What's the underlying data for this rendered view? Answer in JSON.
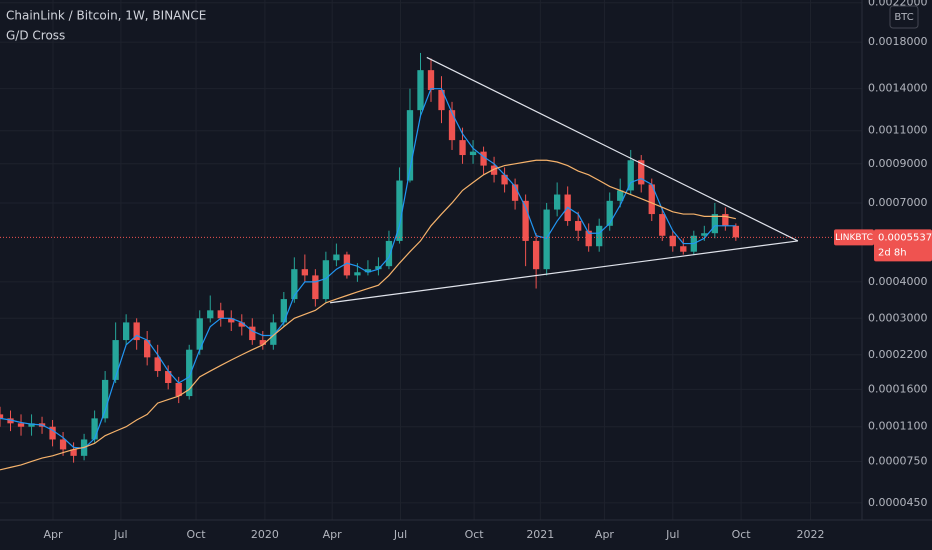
{
  "chart_data": {
    "type": "candlestick",
    "title": "ChainLink / Bitcoin, 1W, BINANCE",
    "indicator": "G/D Cross",
    "currency": "BTC",
    "symbol": "LINKBTC",
    "last_price": 0.0005537,
    "countdown": "2d 8h",
    "up_color": "#26a69a",
    "down_color": "#ef5350",
    "grid": true,
    "xlim": [
      0,
      82
    ],
    "ylim": [
      3.57e-05,
      0.00223
    ],
    "xticks": [
      {
        "value": 5.04,
        "label": "Apr"
      },
      {
        "value": 11.5,
        "label": "Jul"
      },
      {
        "value": 18.65,
        "label": "Oct"
      },
      {
        "value": 25.2,
        "label": "2020"
      },
      {
        "value": 31.6,
        "label": "Apr"
      },
      {
        "value": 38.1,
        "label": "Jul"
      },
      {
        "value": 45.1,
        "label": "Oct"
      },
      {
        "value": 51.4,
        "label": "2021"
      },
      {
        "value": 57.5,
        "label": "Apr"
      },
      {
        "value": 64.0,
        "label": "Jul"
      },
      {
        "value": 70.5,
        "label": "Oct"
      },
      {
        "value": 77.1,
        "label": "2022"
      }
    ],
    "yticks": [
      {
        "value": 4.5e-05,
        "label": "0.0000450"
      },
      {
        "value": 7.5e-05,
        "label": "0.0000750"
      },
      {
        "value": 0.00011,
        "label": "0.0001100"
      },
      {
        "value": 0.00016,
        "label": "0.0001600"
      },
      {
        "value": 0.00022,
        "label": "0.0002200"
      },
      {
        "value": 0.0003,
        "label": "0.0003000"
      },
      {
        "value": 0.0004,
        "label": "0.0004000"
      },
      {
        "value": 0.0007,
        "label": "0.0007000"
      },
      {
        "value": 0.0009,
        "label": "0.0009000"
      },
      {
        "value": 0.0011,
        "label": "0.0011000"
      },
      {
        "value": 0.0014,
        "label": "0.0014000"
      },
      {
        "value": 0.0018,
        "label": "0.0018000"
      },
      {
        "value": 0.0022,
        "label": "0.0022000"
      }
    ],
    "open": [
      0.000125,
      0.00012,
      0.000114,
      0.00011,
      0.000114,
      0.00011,
      9.6e-05,
      8.6e-05,
      8e-05,
      9.6e-05,
      0.00012,
      0.000175,
      0.00025,
      0.00029,
      0.00025,
      0.000215,
      0.00019,
      0.00017,
      0.00015,
      0.00023,
      0.0003,
      0.00032,
      0.0003,
      0.00029,
      0.00028,
      0.00025,
      0.00024,
      0.00029,
      0.00035,
      0.00044,
      0.00042,
      0.00035,
      0.00047,
      0.00049,
      0.00042,
      0.00043,
      0.00044,
      0.00045,
      0.00054,
      0.00081,
      0.00124,
      0.00155,
      0.00139,
      0.00124,
      0.00104,
      0.00095,
      0.00097,
      0.00089,
      0.00084,
      0.00079,
      0.00071,
      0.00054,
      0.00044,
      0.00067,
      0.00074,
      0.00062,
      0.00058,
      0.00052,
      0.0006,
      0.00071,
      0.00076,
      0.00092,
      0.00079,
      0.00065,
      0.00056,
      0.00052,
      0.0005,
      0.00056,
      0.00057,
      0.00065,
      0.0006
    ],
    "high": [
      0.000135,
      0.00013,
      0.000125,
      0.000125,
      0.000122,
      0.000118,
      0.000104,
      9.3e-05,
      0.000102,
      0.00013,
      0.00019,
      0.00029,
      0.00031,
      0.0003,
      0.00027,
      0.00024,
      0.0002,
      0.00018,
      0.00024,
      0.00032,
      0.00036,
      0.00034,
      0.00032,
      0.00031,
      0.0003,
      0.00027,
      0.00031,
      0.00037,
      0.00048,
      0.00049,
      0.00044,
      0.0005,
      0.00053,
      0.0005,
      0.00046,
      0.00047,
      0.00048,
      0.00058,
      0.00088,
      0.0014,
      0.0017,
      0.00165,
      0.0015,
      0.0013,
      0.00112,
      0.00104,
      0.001,
      0.00094,
      0.00088,
      0.00082,
      0.00074,
      0.00057,
      0.0007,
      0.0008,
      0.00078,
      0.00066,
      0.00061,
      0.00063,
      0.00075,
      0.00082,
      0.00098,
      0.00095,
      0.00082,
      0.00068,
      0.00058,
      0.00055,
      0.00058,
      0.0006,
      0.0007,
      0.00068,
      0.00061
    ],
    "low": [
      0.00011,
      0.000105,
      0.0001,
      0.0001,
      0.000102,
      8.9e-05,
      8e-05,
      7.4e-05,
      7.6e-05,
      9.2e-05,
      0.000115,
      0.00017,
      0.00024,
      0.00023,
      0.0002,
      0.00018,
      0.00016,
      0.00014,
      0.000145,
      0.00022,
      0.00029,
      0.00028,
      0.00027,
      0.00026,
      0.00024,
      0.00023,
      0.00023,
      0.00028,
      0.00034,
      0.0004,
      0.00033,
      0.00034,
      0.00045,
      0.00041,
      0.0004,
      0.00042,
      0.00042,
      0.00044,
      0.00053,
      0.0008,
      0.0012,
      0.0013,
      0.00115,
      0.00098,
      0.0009,
      0.0009,
      0.00084,
      0.0008,
      0.00075,
      0.00067,
      0.00045,
      0.00038,
      0.00042,
      0.00064,
      0.0006,
      0.00054,
      0.0005,
      0.0005,
      0.00058,
      0.00068,
      0.00074,
      0.00075,
      0.00062,
      0.00054,
      0.0005,
      0.00049,
      0.00049,
      0.00054,
      0.00055,
      0.00058,
      0.00054
    ],
    "close": [
      0.00012,
      0.000114,
      0.00011,
      0.000114,
      0.00011,
      9.6e-05,
      8.6e-05,
      8e-05,
      9.6e-05,
      0.00012,
      0.000175,
      0.00025,
      0.00029,
      0.00025,
      0.000215,
      0.00019,
      0.00017,
      0.00015,
      0.00023,
      0.0003,
      0.00032,
      0.0003,
      0.00029,
      0.00028,
      0.00025,
      0.00024,
      0.00029,
      0.00035,
      0.00044,
      0.00042,
      0.00035,
      0.00047,
      0.00049,
      0.00042,
      0.00043,
      0.00044,
      0.00045,
      0.00054,
      0.00081,
      0.00124,
      0.00155,
      0.00139,
      0.00124,
      0.00104,
      0.00095,
      0.00097,
      0.00089,
      0.00084,
      0.00079,
      0.00071,
      0.00054,
      0.00044,
      0.00067,
      0.00074,
      0.00062,
      0.00058,
      0.00052,
      0.0006,
      0.00071,
      0.00076,
      0.00092,
      0.00079,
      0.00065,
      0.00056,
      0.00052,
      0.0005,
      0.00056,
      0.00057,
      0.00065,
      0.0006,
      0.0005537
    ],
    "lines": [
      {
        "color": "#2196f3",
        "values": [
          0.00012,
          0.000118,
          0.000115,
          0.000113,
          0.000112,
          0.000106,
          9.8e-05,
          8.8e-05,
          8.7e-05,
          9.7e-05,
          0.00013,
          0.00018,
          0.00024,
          0.00026,
          0.00025,
          0.00022,
          0.00019,
          0.00017,
          0.00018,
          0.00023,
          0.00028,
          0.0003,
          0.0003,
          0.00029,
          0.00027,
          0.00026,
          0.00026,
          0.00029,
          0.00036,
          0.0004,
          0.0004,
          0.00041,
          0.00044,
          0.00046,
          0.00045,
          0.00043,
          0.00044,
          0.00048,
          0.0006,
          0.00087,
          0.0012,
          0.0014,
          0.0014,
          0.00122,
          0.00108,
          0.00099,
          0.00094,
          0.0009,
          0.00084,
          0.00078,
          0.00068,
          0.00056,
          0.00055,
          0.00062,
          0.00068,
          0.00065,
          0.00057,
          0.00057,
          0.00061,
          0.00069,
          0.0008,
          0.00082,
          0.00079,
          0.00067,
          0.00058,
          0.00053,
          0.00053,
          0.00055,
          0.0006,
          0.0006,
          0.0006
        ]
      },
      {
        "color": "#f5b26b",
        "values": [
          6.8e-05,
          7e-05,
          7.2e-05,
          7.5e-05,
          7.8e-05,
          8e-05,
          8.3e-05,
          8.6e-05,
          8.8e-05,
          9.2e-05,
          0.0001,
          0.000105,
          0.00011,
          0.000118,
          0.000125,
          0.00014,
          0.000145,
          0.00015,
          0.00016,
          0.00018,
          0.00019,
          0.0002,
          0.00021,
          0.00022,
          0.00023,
          0.00024,
          0.00026,
          0.00028,
          0.0003,
          0.00031,
          0.00032,
          0.00034,
          0.00035,
          0.00036,
          0.00037,
          0.00038,
          0.00039,
          0.00042,
          0.00046,
          0.0005,
          0.00054,
          0.0006,
          0.00065,
          0.0007,
          0.00076,
          0.0008,
          0.00084,
          0.00087,
          0.00089,
          0.0009,
          0.00091,
          0.00092,
          0.00092,
          0.00091,
          0.00089,
          0.00086,
          0.00084,
          0.00081,
          0.00078,
          0.00076,
          0.00074,
          0.00072,
          0.0007,
          0.00068,
          0.00066,
          0.00065,
          0.00065,
          0.00064,
          0.00064,
          0.00064,
          0.00063
        ]
      }
    ],
    "trendlines": [
      {
        "x": [
          40.6,
          75.9
        ],
        "y": [
          0.00166,
          0.00054
        ]
      },
      {
        "x": [
          31.4,
          75.9
        ],
        "y": [
          0.00034,
          0.00054
        ]
      }
    ]
  }
}
